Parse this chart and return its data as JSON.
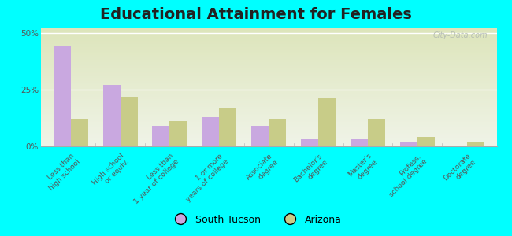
{
  "title": "Educational Attainment for Females",
  "categories": [
    "Less than\nhigh school",
    "High school\nor equiv.",
    "Less than\n1 year of college",
    "1 or more\nyears of college",
    "Associate\ndegree",
    "Bachelor's\ndegree",
    "Master's\ndegree",
    "Profess.\nschool degree",
    "Doctorate\ndegree"
  ],
  "south_tucson": [
    44,
    27,
    9,
    13,
    9,
    3,
    3,
    2,
    0
  ],
  "arizona": [
    12,
    22,
    11,
    17,
    12,
    21,
    12,
    4,
    2
  ],
  "south_tucson_color": "#c9a8e0",
  "arizona_color": "#c8cc88",
  "background_color": "#00ffff",
  "plot_bg_color_top": "#f0f4e8",
  "plot_bg_color_bottom": "#dde5bb",
  "ylim": [
    0,
    52
  ],
  "yticks": [
    0,
    25,
    50
  ],
  "ytick_labels": [
    "0%",
    "25%",
    "50%"
  ],
  "bar_width": 0.35,
  "title_fontsize": 14,
  "tick_fontsize": 6.5,
  "legend_fontsize": 9,
  "watermark": "City-Data.com"
}
